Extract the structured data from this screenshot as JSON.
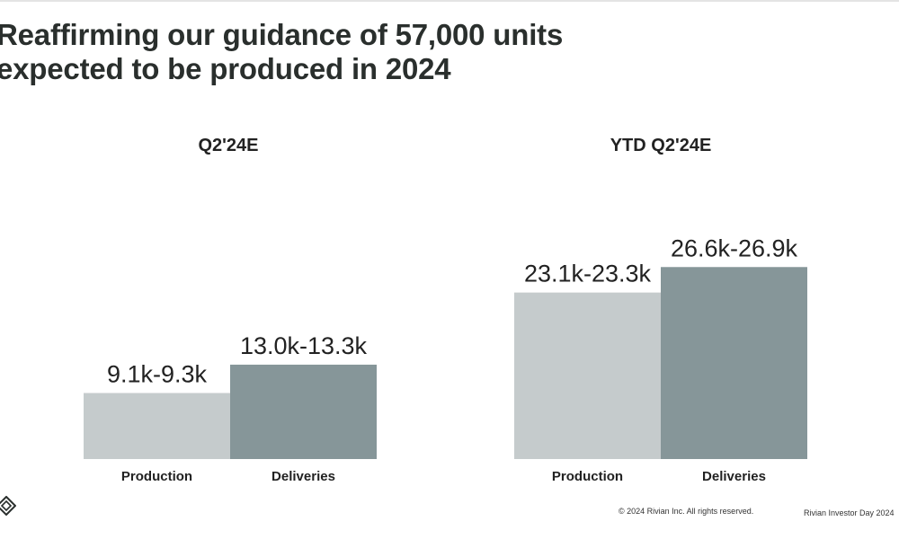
{
  "slide": {
    "headline_line1": "Reaffirming our guidance of 57,000 units",
    "headline_line2": "expected to be produced in 2024",
    "footer_copyright": "© 2024 Rivian Inc. All rights reserved.",
    "footer_event": "Rivian Investor Day 2024",
    "logo_icon": "rivian-diamond-logo-icon"
  },
  "colors": {
    "production": "#c5cbcc",
    "deliveries": "#869699",
    "text": "#222222"
  },
  "chart_data": [
    {
      "type": "bar",
      "title": "Q2'24E",
      "categories": [
        "Production",
        "Deliveries"
      ],
      "value_labels": [
        "9.1k-9.3k",
        "13.0k-13.3k"
      ],
      "values": [
        9.2,
        13.15
      ],
      "ranges": [
        [
          9.1,
          9.3
        ],
        [
          13.0,
          13.3
        ]
      ],
      "unit": "thousand units",
      "grid": false,
      "legend": "none"
    },
    {
      "type": "bar",
      "title": "YTD Q2'24E",
      "categories": [
        "Production",
        "Deliveries"
      ],
      "value_labels": [
        "23.1k-23.3k",
        "26.6k-26.9k"
      ],
      "values": [
        23.2,
        26.75
      ],
      "ranges": [
        [
          23.1,
          23.3
        ],
        [
          26.6,
          26.9
        ]
      ],
      "unit": "thousand units",
      "grid": false,
      "legend": "none"
    }
  ]
}
